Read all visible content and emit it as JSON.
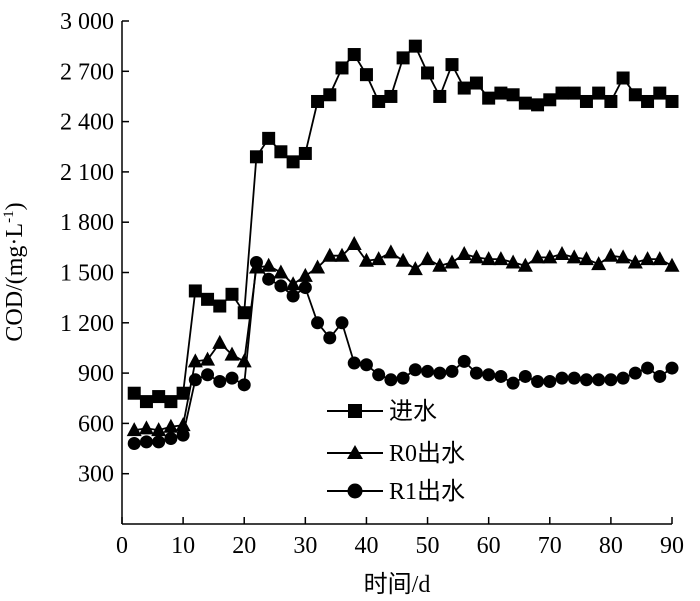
{
  "chart_data": {
    "type": "line",
    "title": "",
    "xlabel": "时间/d",
    "ylabel": "COD/(mg·L",
    "ylabel_sup": "-1",
    "ylabel_close": ")",
    "xlim": [
      0,
      90
    ],
    "ylim": [
      0,
      3000
    ],
    "xticks": [
      0,
      10,
      20,
      30,
      40,
      50,
      60,
      70,
      80,
      90
    ],
    "xtick_labels": [
      "0",
      "10",
      "20",
      "30",
      "40",
      "50",
      "60",
      "70",
      "80",
      "90"
    ],
    "yticks": [
      300,
      600,
      900,
      1200,
      1500,
      1800,
      2100,
      2400,
      2700,
      3000
    ],
    "ytick_labels": [
      "300",
      "600",
      "900",
      "1 200",
      "1 500",
      "1 800",
      "2 100",
      "2 400",
      "2 700",
      "3 000"
    ],
    "grid": false,
    "legend_position": "bottom-center",
    "series": [
      {
        "name": "进水",
        "marker": "square",
        "x": [
          2,
          4,
          6,
          8,
          10,
          12,
          14,
          16,
          18,
          20,
          22,
          24,
          26,
          28,
          30,
          32,
          34,
          36,
          38,
          40,
          42,
          44,
          46,
          48,
          50,
          52,
          54,
          56,
          58,
          60,
          62,
          64,
          66,
          68,
          70,
          72,
          74,
          76,
          78,
          80,
          82,
          84,
          86,
          88,
          90
        ],
        "y": [
          780,
          730,
          760,
          730,
          780,
          1390,
          1340,
          1300,
          1370,
          1260,
          2190,
          2300,
          2220,
          2160,
          2210,
          2520,
          2560,
          2720,
          2800,
          2680,
          2520,
          2550,
          2780,
          2850,
          2690,
          2550,
          2740,
          2600,
          2630,
          2540,
          2570,
          2560,
          2510,
          2500,
          2530,
          2570,
          2570,
          2520,
          2570,
          2520,
          2660,
          2560,
          2520,
          2570,
          2520
        ]
      },
      {
        "name": "R0出水",
        "marker": "triangle",
        "x": [
          2,
          4,
          6,
          8,
          10,
          12,
          14,
          16,
          18,
          20,
          22,
          24,
          26,
          28,
          30,
          32,
          34,
          36,
          38,
          40,
          42,
          44,
          46,
          48,
          50,
          52,
          54,
          56,
          58,
          60,
          62,
          64,
          66,
          68,
          70,
          72,
          74,
          76,
          78,
          80,
          82,
          84,
          86,
          88,
          90
        ],
        "y": [
          560,
          570,
          560,
          580,
          590,
          970,
          980,
          1080,
          1010,
          970,
          1530,
          1540,
          1500,
          1430,
          1480,
          1530,
          1600,
          1600,
          1670,
          1570,
          1580,
          1620,
          1570,
          1520,
          1580,
          1540,
          1560,
          1610,
          1590,
          1580,
          1580,
          1560,
          1540,
          1590,
          1590,
          1610,
          1590,
          1580,
          1550,
          1600,
          1590,
          1560,
          1580,
          1580,
          1540
        ]
      },
      {
        "name": "R1出水",
        "marker": "circle",
        "x": [
          2,
          4,
          6,
          8,
          10,
          12,
          14,
          16,
          18,
          20,
          22,
          24,
          26,
          28,
          30,
          32,
          34,
          36,
          38,
          40,
          42,
          44,
          46,
          48,
          50,
          52,
          54,
          56,
          58,
          60,
          62,
          64,
          66,
          68,
          70,
          72,
          74,
          76,
          78,
          80,
          82,
          84,
          86,
          88,
          90
        ],
        "y": [
          480,
          490,
          490,
          510,
          530,
          860,
          890,
          850,
          870,
          830,
          1560,
          1460,
          1420,
          1360,
          1410,
          1200,
          1110,
          1200,
          960,
          950,
          890,
          860,
          870,
          920,
          910,
          900,
          910,
          970,
          900,
          890,
          880,
          840,
          880,
          850,
          850,
          870,
          870,
          860,
          860,
          860,
          870,
          900,
          930,
          880,
          930
        ]
      }
    ]
  }
}
